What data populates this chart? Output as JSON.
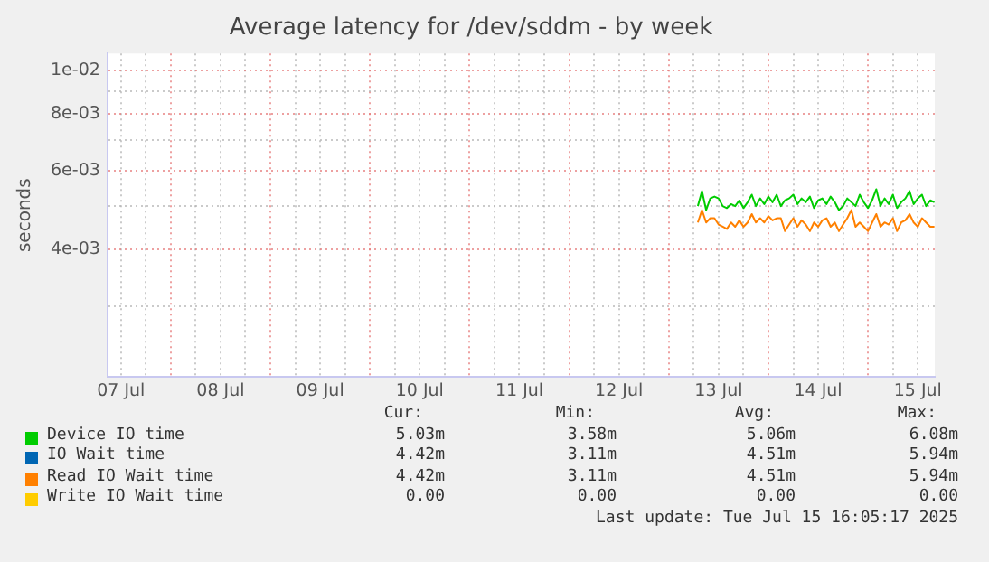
{
  "chart_data": {
    "type": "line",
    "title": "Average latency for /dev/sddm - by week",
    "ylabel": "seconds",
    "log": true,
    "grid": true,
    "legend": "bottom",
    "marker": "none",
    "xlim": [
      "2025-07-07T08:45",
      "2025-07-15T16:05"
    ],
    "xticks": [
      {
        "value": "2025-07-07T12:00",
        "label": "07 Jul"
      },
      {
        "value": "2025-07-07T18:00",
        "label": null
      },
      {
        "value": "2025-07-08T00:00",
        "label": null
      },
      {
        "value": "2025-07-08T06:00",
        "label": null
      },
      {
        "value": "2025-07-08T12:00",
        "label": "08 Jul"
      },
      {
        "value": "2025-07-08T18:00",
        "label": null
      },
      {
        "value": "2025-07-09T00:00",
        "label": null
      },
      {
        "value": "2025-07-09T06:00",
        "label": null
      },
      {
        "value": "2025-07-09T12:00",
        "label": "09 Jul"
      },
      {
        "value": "2025-07-09T18:00",
        "label": null
      },
      {
        "value": "2025-07-10T00:00",
        "label": null
      },
      {
        "value": "2025-07-10T06:00",
        "label": null
      },
      {
        "value": "2025-07-10T12:00",
        "label": "10 Jul"
      },
      {
        "value": "2025-07-10T18:00",
        "label": null
      },
      {
        "value": "2025-07-11T00:00",
        "label": null
      },
      {
        "value": "2025-07-11T06:00",
        "label": null
      },
      {
        "value": "2025-07-11T12:00",
        "label": "11 Jul"
      },
      {
        "value": "2025-07-11T18:00",
        "label": null
      },
      {
        "value": "2025-07-12T00:00",
        "label": null
      },
      {
        "value": "2025-07-12T06:00",
        "label": null
      },
      {
        "value": "2025-07-12T12:00",
        "label": "12 Jul"
      },
      {
        "value": "2025-07-12T18:00",
        "label": null
      },
      {
        "value": "2025-07-13T00:00",
        "label": null
      },
      {
        "value": "2025-07-13T06:00",
        "label": null
      },
      {
        "value": "2025-07-13T12:00",
        "label": "13 Jul"
      },
      {
        "value": "2025-07-13T18:00",
        "label": null
      },
      {
        "value": "2025-07-14T00:00",
        "label": null
      },
      {
        "value": "2025-07-14T06:00",
        "label": null
      },
      {
        "value": "2025-07-14T12:00",
        "label": "14 Jul"
      },
      {
        "value": "2025-07-14T18:00",
        "label": null
      },
      {
        "value": "2025-07-15T00:00",
        "label": null
      },
      {
        "value": "2025-07-15T06:00",
        "label": null
      },
      {
        "value": "2025-07-15T12:00",
        "label": "15 Jul"
      }
    ],
    "ylim": [
      0.00209,
      0.0109
    ],
    "yticks": [
      {
        "value": 0.003,
        "label": null
      },
      {
        "value": 0.004,
        "label": "4e-03"
      },
      {
        "value": 0.005,
        "label": null
      },
      {
        "value": 0.006,
        "label": "6e-03"
      },
      {
        "value": 0.007,
        "label": null
      },
      {
        "value": 0.008,
        "label": "8e-03"
      },
      {
        "value": 0.009,
        "label": null
      },
      {
        "value": 0.01,
        "label": "1e-02"
      }
    ],
    "x": [
      "2025-07-13T07:00",
      "2025-07-13T08:00",
      "2025-07-13T09:00",
      "2025-07-13T10:00",
      "2025-07-13T11:00",
      "2025-07-13T12:00",
      "2025-07-13T13:00",
      "2025-07-13T14:00",
      "2025-07-13T15:00",
      "2025-07-13T16:00",
      "2025-07-13T17:00",
      "2025-07-13T18:00",
      "2025-07-13T19:00",
      "2025-07-13T20:00",
      "2025-07-13T21:00",
      "2025-07-13T22:00",
      "2025-07-13T23:00",
      "2025-07-14T00:00",
      "2025-07-14T01:00",
      "2025-07-14T02:00",
      "2025-07-14T03:00",
      "2025-07-14T04:00",
      "2025-07-14T05:00",
      "2025-07-14T06:00",
      "2025-07-14T07:00",
      "2025-07-14T08:00",
      "2025-07-14T09:00",
      "2025-07-14T10:00",
      "2025-07-14T11:00",
      "2025-07-14T12:00",
      "2025-07-14T13:00",
      "2025-07-14T14:00",
      "2025-07-14T15:00",
      "2025-07-14T16:00",
      "2025-07-14T17:00",
      "2025-07-14T18:00",
      "2025-07-14T19:00",
      "2025-07-14T20:00",
      "2025-07-14T21:00",
      "2025-07-14T22:00",
      "2025-07-14T23:00",
      "2025-07-15T00:00",
      "2025-07-15T01:00",
      "2025-07-15T02:00",
      "2025-07-15T03:00",
      "2025-07-15T04:00",
      "2025-07-15T05:00",
      "2025-07-15T06:00",
      "2025-07-15T07:00",
      "2025-07-15T08:00",
      "2025-07-15T09:00",
      "2025-07-15T10:00",
      "2025-07-15T11:00",
      "2025-07-15T12:00",
      "2025-07-15T13:00",
      "2025-07-15T14:00",
      "2025-07-15T15:00",
      "2025-07-15T16:00"
    ],
    "series": [
      {
        "name": "Device IO time",
        "color": "#00cc00",
        "values": [
          0.005,
          0.0054,
          0.0049,
          0.0052,
          0.00525,
          0.0052,
          0.005,
          0.00495,
          0.00505,
          0.005,
          0.00515,
          0.00495,
          0.0051,
          0.0053,
          0.005,
          0.0052,
          0.00505,
          0.00525,
          0.0051,
          0.0053,
          0.005,
          0.00515,
          0.0052,
          0.0053,
          0.00505,
          0.0052,
          0.0051,
          0.00525,
          0.00495,
          0.00515,
          0.0052,
          0.00505,
          0.00525,
          0.0051,
          0.0049,
          0.005,
          0.0052,
          0.0051,
          0.005,
          0.0053,
          0.0051,
          0.00495,
          0.00515,
          0.00545,
          0.005,
          0.0052,
          0.00505,
          0.0053,
          0.00495,
          0.0051,
          0.0052,
          0.0054,
          0.00505,
          0.0052,
          0.0053,
          0.005,
          0.00515,
          0.0051
        ]
      },
      {
        "name": "IO Wait time",
        "color": "#0066b3",
        "values": [
          null,
          null,
          null,
          null,
          null,
          null,
          null,
          null,
          null,
          null,
          null,
          null,
          null,
          null,
          null,
          null,
          null,
          null,
          null,
          null,
          null,
          null,
          null,
          null,
          null,
          null,
          null,
          null,
          null,
          null,
          null,
          null,
          null,
          null,
          null,
          null,
          null,
          null,
          null,
          null,
          null,
          null,
          null,
          null,
          null,
          null,
          null,
          null,
          null,
          null,
          null,
          null,
          null,
          null,
          null,
          null,
          null,
          null
        ]
      },
      {
        "name": "Read IO Wait time",
        "color": "#ff8000",
        "values": [
          0.0046,
          0.0049,
          0.0046,
          0.0047,
          0.0047,
          0.00455,
          0.0045,
          0.00445,
          0.0046,
          0.0045,
          0.00465,
          0.0045,
          0.0046,
          0.0048,
          0.0046,
          0.0047,
          0.0046,
          0.00475,
          0.00465,
          0.0047,
          0.0047,
          0.0044,
          0.00455,
          0.0047,
          0.0045,
          0.00465,
          0.00455,
          0.0044,
          0.0046,
          0.0045,
          0.00465,
          0.0047,
          0.0045,
          0.0046,
          0.0044,
          0.00455,
          0.0047,
          0.0049,
          0.0045,
          0.0046,
          0.0045,
          0.0044,
          0.0046,
          0.0048,
          0.0045,
          0.0046,
          0.00455,
          0.0047,
          0.0044,
          0.0046,
          0.00465,
          0.0048,
          0.0046,
          0.0045,
          0.0047,
          0.0046,
          0.0045,
          0.0045
        ]
      },
      {
        "name": "Write IO Wait time",
        "color": "#ffcc00",
        "values": [
          null,
          null,
          null,
          null,
          null,
          null,
          null,
          null,
          null,
          null,
          null,
          null,
          null,
          null,
          null,
          null,
          null,
          null,
          null,
          null,
          null,
          null,
          null,
          null,
          null,
          null,
          null,
          null,
          null,
          null,
          null,
          null,
          null,
          null,
          null,
          null,
          null,
          null,
          null,
          null,
          null,
          null,
          null,
          null,
          null,
          null,
          null,
          null,
          null,
          null,
          null,
          null,
          null,
          null,
          null,
          null,
          null,
          null
        ]
      }
    ],
    "annotations": [
      "Cur:",
      "Min:",
      "Avg:",
      "Max:",
      "5.03m",
      "3.58m",
      "5.06m",
      "6.08m",
      "4.42m",
      "3.11m",
      "4.51m",
      "5.94m",
      "4.42m",
      "3.11m",
      "4.51m",
      "5.94m",
      "0.00",
      "0.00",
      "0.00",
      "0.00",
      "Last update: Tue Jul 15 16:05:17 2025"
    ]
  }
}
